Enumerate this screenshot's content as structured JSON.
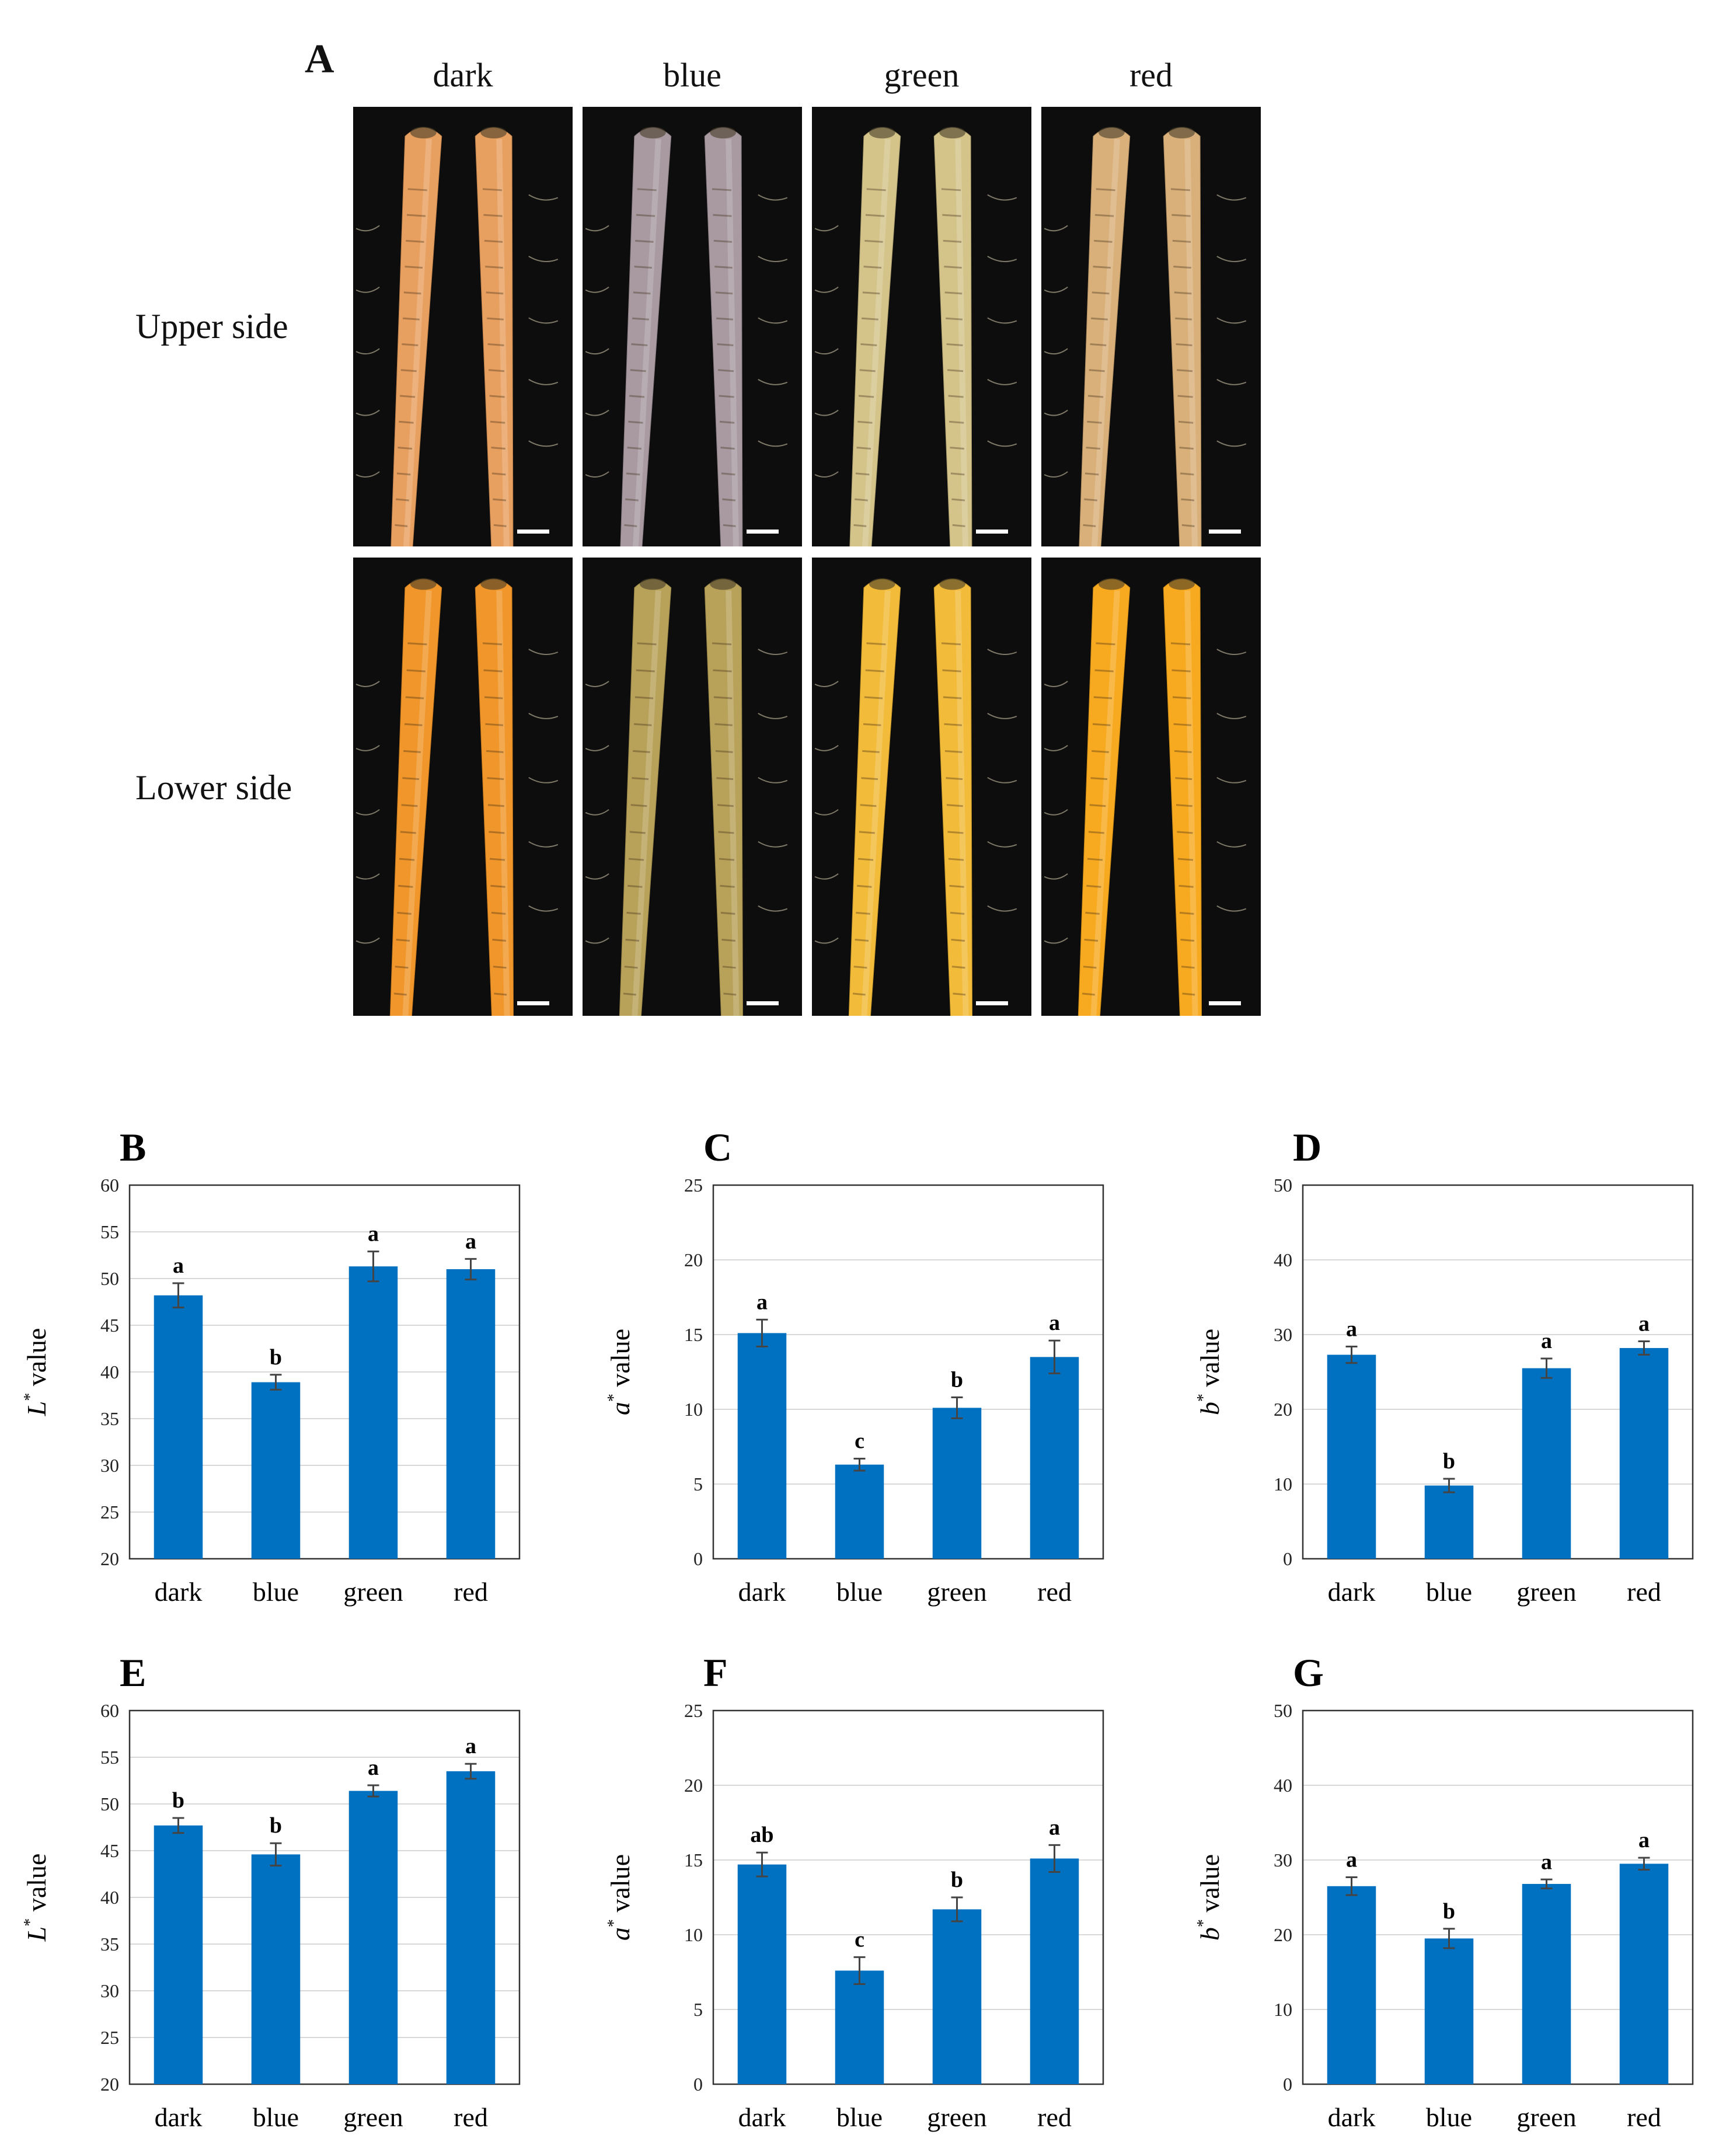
{
  "figure": {
    "panel_A": {
      "letter": "A",
      "columns": [
        "dark",
        "blue",
        "green",
        "red"
      ],
      "rows": [
        "Upper side",
        "Lower side"
      ]
    }
  },
  "colors": {
    "bar": "#0070c0",
    "error": "#444444",
    "grid": "#d9d9d9",
    "background_photo": "#0d0d0d",
    "carrot_upper": [
      "#e8a060",
      "#a89aa0",
      "#d4c48a",
      "#d9b07a"
    ],
    "carrot_lower": [
      "#f0962a",
      "#b8a25a",
      "#f2bb3a",
      "#f7aa20"
    ]
  },
  "chart_data": [
    {
      "panel": "B",
      "type": "bar",
      "categories": [
        "dark",
        "blue",
        "green",
        "red"
      ],
      "values": [
        48.2,
        38.9,
        51.3,
        51.0
      ],
      "errors": [
        1.3,
        0.8,
        1.6,
        1.1
      ],
      "letters": [
        "a",
        "b",
        "a",
        "a"
      ],
      "ylim": [
        20,
        60
      ],
      "yticks": [
        20,
        25,
        30,
        35,
        40,
        45,
        50,
        55,
        60
      ],
      "ylabel_var": "L",
      "ylabel_sup": "*",
      "ylabel_rest": " value"
    },
    {
      "panel": "C",
      "type": "bar",
      "categories": [
        "dark",
        "blue",
        "green",
        "red"
      ],
      "values": [
        15.1,
        6.3,
        10.1,
        13.5
      ],
      "errors": [
        0.9,
        0.4,
        0.7,
        1.1
      ],
      "letters": [
        "a",
        "c",
        "b",
        "a"
      ],
      "ylim": [
        0,
        25
      ],
      "yticks": [
        0,
        5,
        10,
        15,
        20,
        25
      ],
      "ylabel_var": "a",
      "ylabel_sup": "*",
      "ylabel_rest": " value"
    },
    {
      "panel": "D",
      "type": "bar",
      "categories": [
        "dark",
        "blue",
        "green",
        "red"
      ],
      "values": [
        27.3,
        9.8,
        25.5,
        28.2
      ],
      "errors": [
        1.1,
        0.9,
        1.3,
        0.9
      ],
      "letters": [
        "a",
        "b",
        "a",
        "a"
      ],
      "ylim": [
        0,
        50
      ],
      "yticks": [
        0,
        10,
        20,
        30,
        40,
        50
      ],
      "ylabel_var": "b",
      "ylabel_sup": "*",
      "ylabel_rest": " value"
    },
    {
      "panel": "E",
      "type": "bar",
      "categories": [
        "dark",
        "blue",
        "green",
        "red"
      ],
      "values": [
        47.7,
        44.6,
        51.4,
        53.5
      ],
      "errors": [
        0.8,
        1.2,
        0.6,
        0.8
      ],
      "letters": [
        "b",
        "b",
        "a",
        "a"
      ],
      "ylim": [
        20,
        60
      ],
      "yticks": [
        20,
        25,
        30,
        35,
        40,
        45,
        50,
        55,
        60
      ],
      "ylabel_var": "L",
      "ylabel_sup": "*",
      "ylabel_rest": " value"
    },
    {
      "panel": "F",
      "type": "bar",
      "categories": [
        "dark",
        "blue",
        "green",
        "red"
      ],
      "values": [
        14.7,
        7.6,
        11.7,
        15.1
      ],
      "errors": [
        0.8,
        0.9,
        0.8,
        0.9
      ],
      "letters": [
        "ab",
        "c",
        "b",
        "a"
      ],
      "ylim": [
        0,
        25
      ],
      "yticks": [
        0,
        5,
        10,
        15,
        20,
        25
      ],
      "ylabel_var": "a",
      "ylabel_sup": "*",
      "ylabel_rest": " value"
    },
    {
      "panel": "G",
      "type": "bar",
      "categories": [
        "dark",
        "blue",
        "green",
        "red"
      ],
      "values": [
        26.5,
        19.5,
        26.8,
        29.5
      ],
      "errors": [
        1.2,
        1.3,
        0.6,
        0.8
      ],
      "letters": [
        "a",
        "b",
        "a",
        "a"
      ],
      "ylim": [
        0,
        50
      ],
      "yticks": [
        0,
        10,
        20,
        30,
        40,
        50
      ],
      "ylabel_var": "b",
      "ylabel_sup": "*",
      "ylabel_rest": " value"
    }
  ]
}
